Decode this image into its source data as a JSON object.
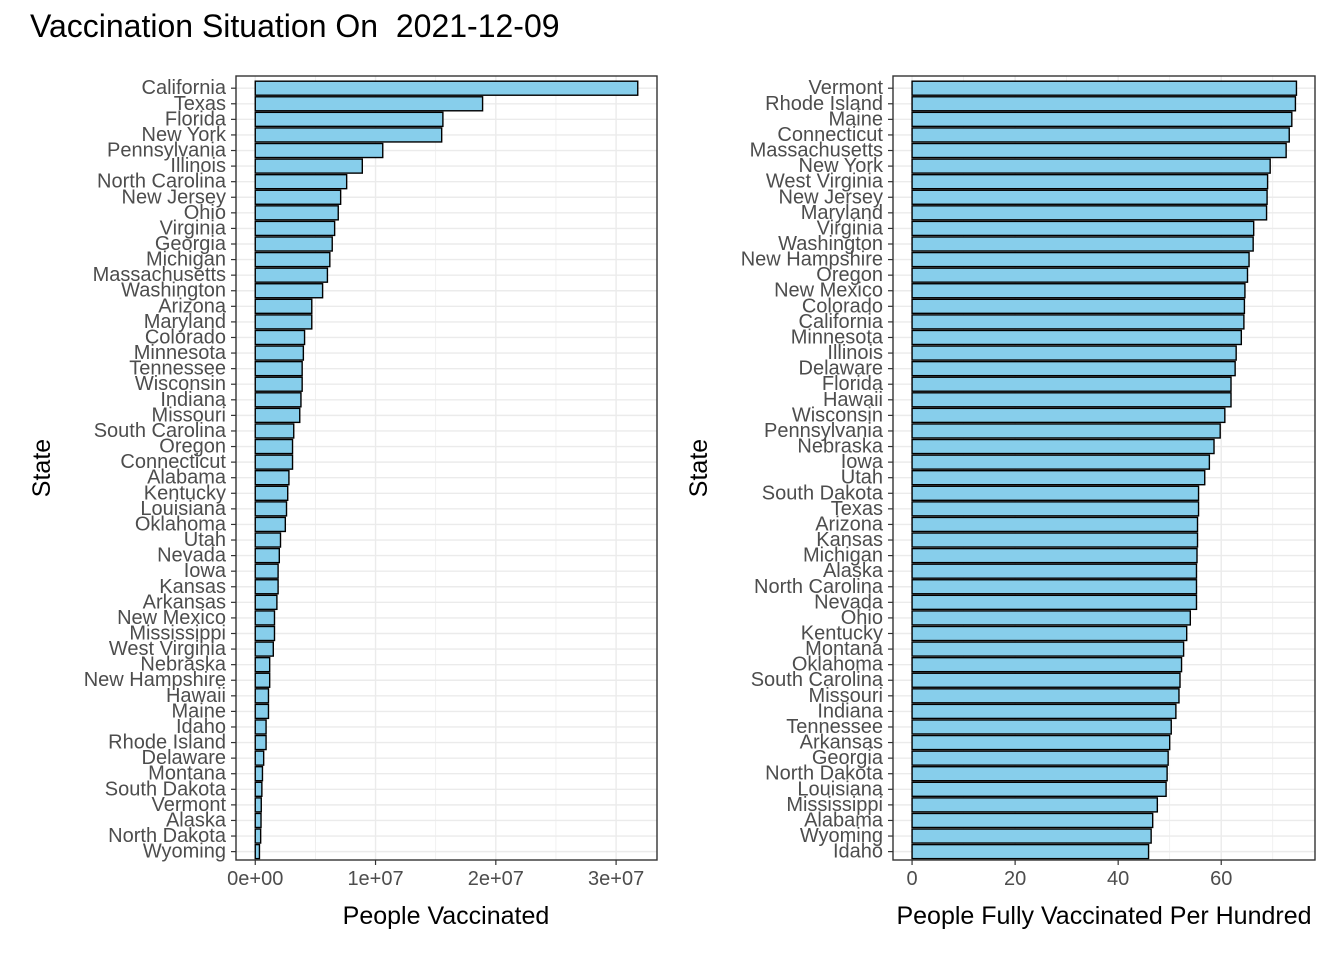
{
  "title": "Vaccination Situation On  2021-12-09",
  "colors": {
    "bar_fill": "#87CEEB",
    "bar_stroke": "#000000",
    "grid": "#ebebeb",
    "panel_border": "#333333"
  },
  "chart_data": [
    {
      "type": "bar",
      "orientation": "horizontal",
      "xlabel": "People Vaccinated",
      "ylabel": "State",
      "xlim": [
        -1600000,
        33400000
      ],
      "x_ticks": [
        0,
        10000000,
        20000000,
        30000000
      ],
      "x_tick_labels": [
        "0e+00",
        "1e+07",
        "2e+07",
        "3e+07"
      ],
      "grid": true,
      "categories": [
        "California",
        "Texas",
        "Florida",
        "New York",
        "Pennsylvania",
        "Illinois",
        "North Carolina",
        "New Jersey",
        "Ohio",
        "Virginia",
        "Georgia",
        "Michigan",
        "Massachusetts",
        "Washington",
        "Arizona",
        "Maryland",
        "Colorado",
        "Minnesota",
        "Tennessee",
        "Wisconsin",
        "Indiana",
        "Missouri",
        "South Carolina",
        "Oregon",
        "Connecticut",
        "Alabama",
        "Kentucky",
        "Louisiana",
        "Oklahoma",
        "Utah",
        "Nevada",
        "Iowa",
        "Kansas",
        "Arkansas",
        "New Mexico",
        "Mississippi",
        "West Virginia",
        "Nebraska",
        "New Hampshire",
        "Hawaii",
        "Maine",
        "Idaho",
        "Rhode Island",
        "Delaware",
        "Montana",
        "South Dakota",
        "Vermont",
        "Alaska",
        "North Dakota",
        "Wyoming"
      ],
      "values": [
        31800000,
        18900000,
        15600000,
        15500000,
        10600000,
        8900000,
        7600000,
        7100000,
        6900000,
        6600000,
        6400000,
        6200000,
        6000000,
        5600000,
        4700000,
        4700000,
        4100000,
        4000000,
        3900000,
        3900000,
        3800000,
        3700000,
        3200000,
        3100000,
        3100000,
        2800000,
        2700000,
        2600000,
        2500000,
        2100000,
        2000000,
        1900000,
        1900000,
        1800000,
        1600000,
        1600000,
        1500000,
        1200000,
        1200000,
        1100000,
        1100000,
        900000,
        900000,
        700000,
        600000,
        550000,
        500000,
        480000,
        450000,
        350000
      ]
    },
    {
      "type": "bar",
      "orientation": "horizontal",
      "xlabel": "People Fully Vaccinated Per Hundred",
      "ylabel": "State",
      "xlim": [
        -3.7,
        78.2
      ],
      "x_ticks": [
        0,
        20,
        40,
        60
      ],
      "x_tick_labels": [
        "0",
        "20",
        "40",
        "60"
      ],
      "grid": true,
      "categories": [
        "Vermont",
        "Rhode Island",
        "Maine",
        "Connecticut",
        "Massachusetts",
        "New York",
        "West Virginia",
        "New Jersey",
        "Maryland",
        "Virginia",
        "Washington",
        "New Hampshire",
        "Oregon",
        "New Mexico",
        "Colorado",
        "California",
        "Minnesota",
        "Illinois",
        "Delaware",
        "Florida",
        "Hawaii",
        "Wisconsin",
        "Pennsylvania",
        "Nebraska",
        "Iowa",
        "Utah",
        "South Dakota",
        "Texas",
        "Arizona",
        "Kansas",
        "Michigan",
        "Alaska",
        "North Carolina",
        "Nevada",
        "Ohio",
        "Kentucky",
        "Montana",
        "Oklahoma",
        "South Carolina",
        "Missouri",
        "Indiana",
        "Tennessee",
        "Arkansas",
        "Georgia",
        "North Dakota",
        "Louisiana",
        "Mississippi",
        "Alabama",
        "Wyoming",
        "Idaho"
      ],
      "values": [
        74.6,
        74.4,
        73.7,
        73.2,
        72.6,
        69.5,
        69.0,
        68.9,
        68.8,
        66.3,
        66.2,
        65.4,
        65.1,
        64.6,
        64.5,
        64.4,
        63.9,
        62.9,
        62.7,
        61.9,
        61.9,
        60.7,
        59.8,
        58.6,
        57.7,
        56.8,
        55.6,
        55.6,
        55.4,
        55.4,
        55.3,
        55.2,
        55.2,
        55.2,
        54.0,
        53.3,
        52.7,
        52.3,
        52.0,
        51.8,
        51.2,
        50.3,
        50.0,
        49.7,
        49.5,
        49.3,
        47.6,
        46.7,
        46.4,
        45.9
      ]
    }
  ]
}
